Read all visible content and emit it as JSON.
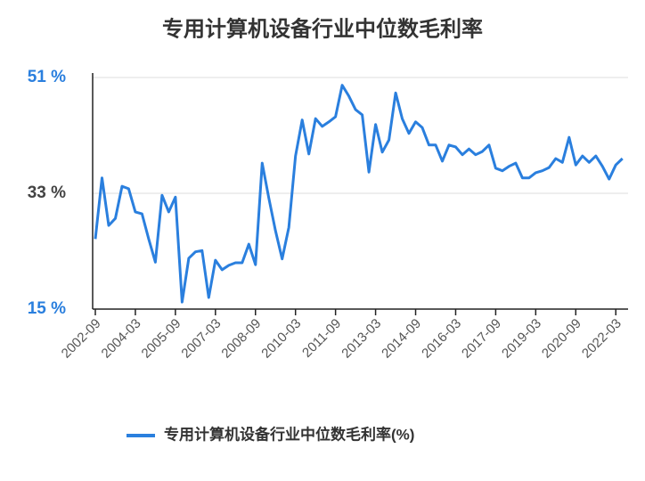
{
  "chart_data": {
    "type": "line",
    "title": "专用计算机设备行业中位数毛利率",
    "categories": [
      "2002-09",
      null,
      null,
      null,
      null,
      null,
      "2004-03",
      null,
      null,
      null,
      null,
      null,
      "2005-09",
      null,
      null,
      null,
      null,
      null,
      "2007-03",
      null,
      null,
      null,
      null,
      null,
      "2008-09",
      null,
      null,
      null,
      null,
      null,
      "2010-03",
      null,
      null,
      null,
      null,
      null,
      "2011-09",
      null,
      null,
      null,
      null,
      null,
      "2013-03",
      null,
      null,
      null,
      null,
      null,
      "2014-09",
      null,
      null,
      null,
      null,
      null,
      "2016-03",
      null,
      null,
      null,
      null,
      null,
      "2017-09",
      null,
      null,
      null,
      null,
      null,
      "2019-03",
      null,
      null,
      null,
      null,
      null,
      "2020-09",
      null,
      null,
      null,
      null,
      null,
      "2022-03",
      null
    ],
    "series": [
      {
        "name": "专用计算机设备行业中位数毛利率(%)",
        "color": "#2a7fde",
        "values": [
          25.9,
          35.4,
          28.0,
          29.1,
          34.1,
          33.7,
          30.1,
          29.8,
          25.9,
          22.3,
          32.7,
          30.1,
          32.4,
          16.1,
          22.9,
          23.9,
          24.1,
          16.8,
          22.6,
          21.1,
          21.8,
          22.2,
          22.2,
          25.1,
          21.9,
          37.7,
          32.3,
          27.2,
          22.8,
          27.7,
          38.8,
          44.4,
          39.1,
          44.6,
          43.4,
          44.1,
          44.9,
          49.8,
          48.1,
          46.0,
          45.2,
          36.3,
          43.7,
          39.4,
          41.3,
          48.6,
          44.6,
          42.3,
          44.1,
          43.2,
          40.5,
          40.5,
          38.0,
          40.5,
          40.2,
          39.0,
          39.9,
          39.0,
          39.5,
          40.5,
          36.9,
          36.5,
          37.2,
          37.7,
          35.4,
          35.4,
          36.2,
          36.5,
          37.0,
          38.4,
          37.8,
          41.7,
          37.4,
          38.8,
          37.8,
          38.8,
          37.2,
          35.2,
          37.4,
          38.4
        ]
      }
    ],
    "ylim": [
      15,
      51
    ],
    "yticks": [
      {
        "value": 15,
        "label": "15 %"
      },
      {
        "value": 33,
        "label": "33 %"
      },
      {
        "value": 51,
        "label": "51 %"
      }
    ],
    "grid": true
  }
}
